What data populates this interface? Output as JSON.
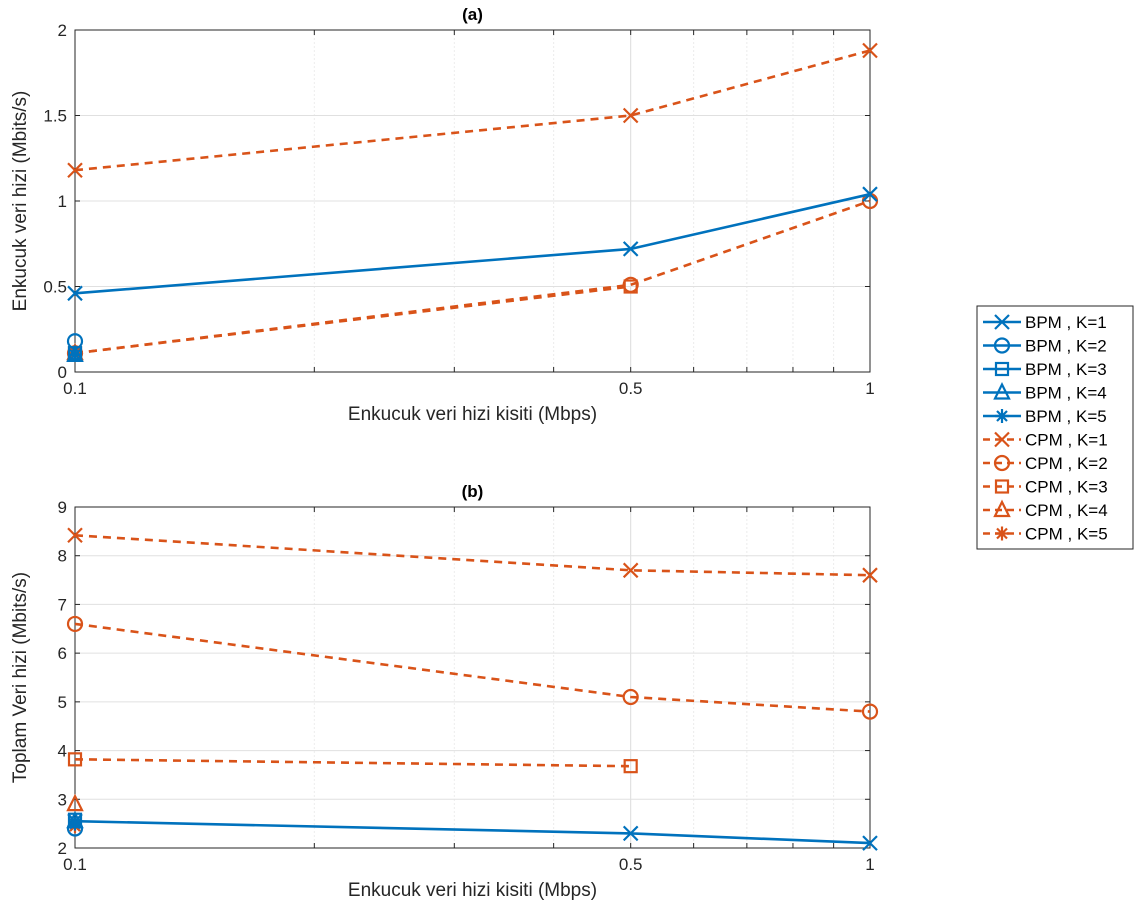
{
  "chart_data": [
    {
      "type": "line",
      "title": "(a)",
      "xlabel": "Enkucuk veri hizi kisiti (Mbps)",
      "ylabel": "Enkucuk veri hizi (Mbits/s)",
      "xscale": "log",
      "xlim": [
        0.1,
        1
      ],
      "ylim": [
        0,
        2
      ],
      "xticks": [
        "0.1",
        "0.5",
        "1"
      ],
      "yticks": [
        "0",
        "0.5",
        "1",
        "1.5",
        "2"
      ],
      "grid": true,
      "series": [
        {
          "name": "BPM , K=1",
          "marker": "x",
          "color": "#0072BD",
          "dash": "solid",
          "x": [
            0.1,
            0.5,
            1
          ],
          "y": [
            0.46,
            0.72,
            1.04
          ]
        },
        {
          "name": "BPM , K=2",
          "marker": "o",
          "color": "#0072BD",
          "dash": "solid",
          "x": [
            0.1
          ],
          "y": [
            0.18
          ]
        },
        {
          "name": "BPM , K=3",
          "marker": "s",
          "color": "#0072BD",
          "dash": "solid",
          "x": [
            0.1
          ],
          "y": [
            0.11
          ]
        },
        {
          "name": "BPM , K=4",
          "marker": "^",
          "color": "#0072BD",
          "dash": "solid",
          "x": [
            0.1
          ],
          "y": [
            0.1
          ]
        },
        {
          "name": "BPM , K=5",
          "marker": "*",
          "color": "#0072BD",
          "dash": "solid",
          "x": [
            0.1
          ],
          "y": [
            0.1
          ]
        },
        {
          "name": "CPM , K=1",
          "marker": "x",
          "color": "#D95319",
          "dash": "dashed",
          "x": [
            0.1,
            0.5,
            1
          ],
          "y": [
            1.18,
            1.5,
            1.88
          ]
        },
        {
          "name": "CPM , K=2",
          "marker": "o",
          "color": "#D95319",
          "dash": "dashed",
          "x": [
            0.1,
            0.5,
            1
          ],
          "y": [
            0.11,
            0.51,
            1.0
          ]
        },
        {
          "name": "CPM , K=3",
          "marker": "s",
          "color": "#D95319",
          "dash": "dashed",
          "x": [
            0.1,
            0.5
          ],
          "y": [
            0.11,
            0.5
          ]
        },
        {
          "name": "CPM , K=4",
          "marker": "^",
          "color": "#D95319",
          "dash": "dashed",
          "x": [
            0.1
          ],
          "y": [
            0.11
          ]
        },
        {
          "name": "CPM , K=5",
          "marker": "*",
          "color": "#D95319",
          "dash": "dashed",
          "x": [
            0.1
          ],
          "y": [
            0.11
          ]
        }
      ]
    },
    {
      "type": "line",
      "title": "(b)",
      "xlabel": "Enkucuk veri hizi kisiti (Mbps)",
      "ylabel": "Toplam Veri hizi (Mbits/s)",
      "xscale": "log",
      "xlim": [
        0.1,
        1
      ],
      "ylim": [
        2,
        9
      ],
      "xticks": [
        "0.1",
        "0.5",
        "1"
      ],
      "yticks": [
        "2",
        "3",
        "4",
        "5",
        "6",
        "7",
        "8",
        "9"
      ],
      "grid": true,
      "series": [
        {
          "name": "BPM , K=1",
          "marker": "x",
          "color": "#0072BD",
          "dash": "solid",
          "x": [
            0.1,
            0.5,
            1
          ],
          "y": [
            2.55,
            2.3,
            2.1
          ]
        },
        {
          "name": "BPM , K=2",
          "marker": "o",
          "color": "#0072BD",
          "dash": "solid",
          "x": [
            0.1
          ],
          "y": [
            2.4
          ]
        },
        {
          "name": "BPM , K=3",
          "marker": "s",
          "color": "#0072BD",
          "dash": "solid",
          "x": [
            0.1
          ],
          "y": [
            2.58
          ]
        },
        {
          "name": "BPM , K=4",
          "marker": "^",
          "color": "#0072BD",
          "dash": "solid",
          "x": [
            0.1
          ],
          "y": [
            2.55
          ]
        },
        {
          "name": "BPM , K=5",
          "marker": "*",
          "color": "#0072BD",
          "dash": "solid",
          "x": [
            0.1
          ],
          "y": [
            2.5
          ]
        },
        {
          "name": "CPM , K=1",
          "marker": "x",
          "color": "#D95319",
          "dash": "dashed",
          "x": [
            0.1,
            0.5,
            1
          ],
          "y": [
            8.42,
            7.7,
            7.6
          ]
        },
        {
          "name": "CPM , K=2",
          "marker": "o",
          "color": "#D95319",
          "dash": "dashed",
          "x": [
            0.1,
            0.5,
            1
          ],
          "y": [
            6.6,
            5.1,
            4.8
          ]
        },
        {
          "name": "CPM , K=3",
          "marker": "s",
          "color": "#D95319",
          "dash": "dashed",
          "x": [
            0.1,
            0.5
          ],
          "y": [
            3.82,
            3.68
          ]
        },
        {
          "name": "CPM , K=4",
          "marker": "^",
          "color": "#D95319",
          "dash": "dashed",
          "x": [
            0.1
          ],
          "y": [
            2.9
          ]
        },
        {
          "name": "CPM , K=5",
          "marker": "*",
          "color": "#D95319",
          "dash": "dashed",
          "x": [
            0.1
          ],
          "y": [
            2.45
          ]
        }
      ]
    }
  ],
  "legend": {
    "placement": "right",
    "entries": [
      "BPM , K=1",
      "BPM , K=2",
      "BPM , K=3",
      "BPM , K=4",
      "BPM , K=5",
      "CPM , K=1",
      "CPM , K=2",
      "CPM , K=3",
      "CPM , K=4",
      "CPM , K=5"
    ]
  }
}
